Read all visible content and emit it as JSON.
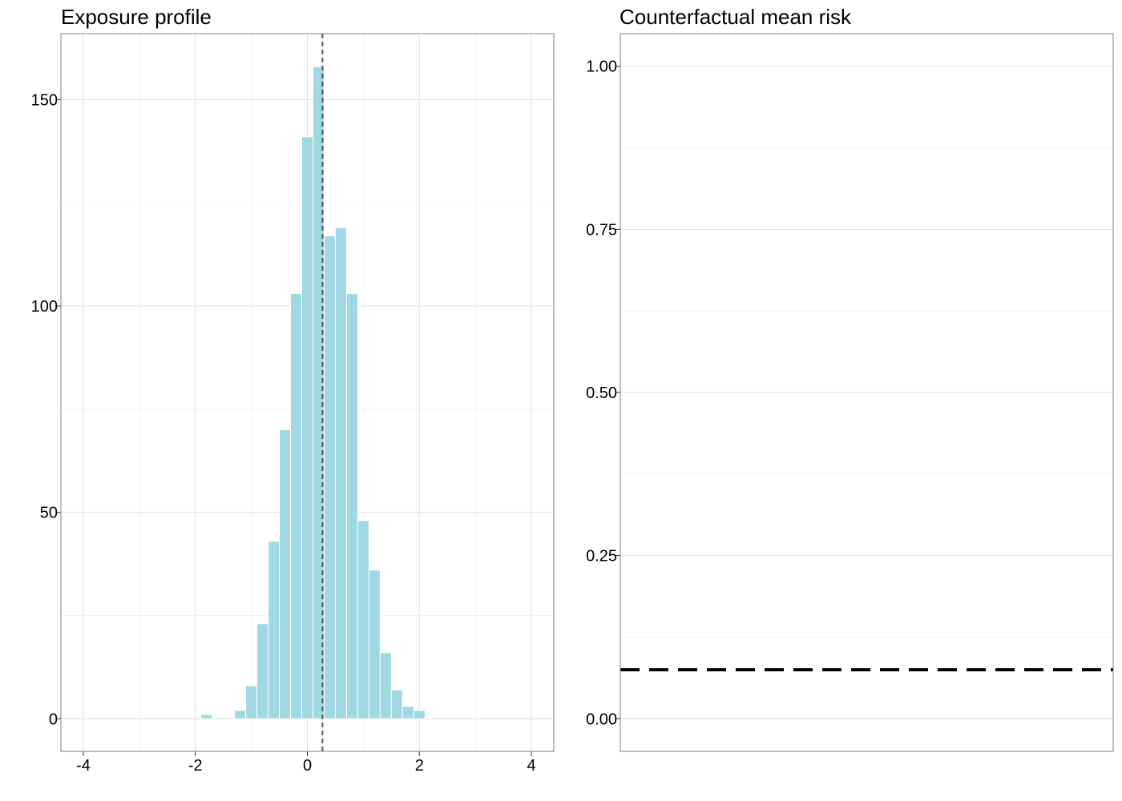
{
  "chart_data": [
    {
      "type": "bar",
      "title": "Exposure profile",
      "xlabel": "",
      "ylabel": "",
      "xlim": [
        -4.4,
        4.4
      ],
      "ylim": [
        -7.9,
        166
      ],
      "x_ticks": [
        -4,
        -2,
        0,
        2,
        4
      ],
      "x_tick_labels": [
        "-4",
        "-2",
        "0",
        "2",
        "4"
      ],
      "y_ticks": [
        0,
        50,
        100,
        150
      ],
      "y_tick_labels": [
        "0",
        "50",
        "100",
        "150"
      ],
      "grid": true,
      "bin_width": 0.2,
      "bins": [
        {
          "center": -1.8,
          "count": 1
        },
        {
          "center": -1.2,
          "count": 2
        },
        {
          "center": -1.0,
          "count": 8
        },
        {
          "center": -0.8,
          "count": 23
        },
        {
          "center": -0.6,
          "count": 43
        },
        {
          "center": -0.4,
          "count": 70
        },
        {
          "center": -0.2,
          "count": 103
        },
        {
          "center": 0.0,
          "count": 141
        },
        {
          "center": 0.2,
          "count": 158
        },
        {
          "center": 0.4,
          "count": 117
        },
        {
          "center": 0.6,
          "count": 119
        },
        {
          "center": 0.8,
          "count": 103
        },
        {
          "center": 1.0,
          "count": 48
        },
        {
          "center": 1.2,
          "count": 36
        },
        {
          "center": 1.4,
          "count": 16
        },
        {
          "center": 1.6,
          "count": 7
        },
        {
          "center": 1.8,
          "count": 3
        },
        {
          "center": 2.0,
          "count": 2
        }
      ],
      "reference_line": {
        "x": 0.27,
        "style": "dashed"
      },
      "colors": {
        "bar_fill": "#a0d8e4",
        "bar_outline": "#ffffff",
        "reference_line": "#555555"
      }
    },
    {
      "type": "line",
      "title": "Counterfactual mean risk",
      "xlabel": "",
      "ylabel": "",
      "ylim": [
        -0.05,
        1.05
      ],
      "y_ticks": [
        0.0,
        0.25,
        0.5,
        0.75,
        1.0
      ],
      "y_tick_labels": [
        "0.00",
        "0.25",
        "0.50",
        "0.75",
        "1.00"
      ],
      "grid": true,
      "reference_line": {
        "y": 0.075,
        "style": "dashed"
      },
      "colors": {
        "reference_line": "#000000"
      }
    }
  ]
}
